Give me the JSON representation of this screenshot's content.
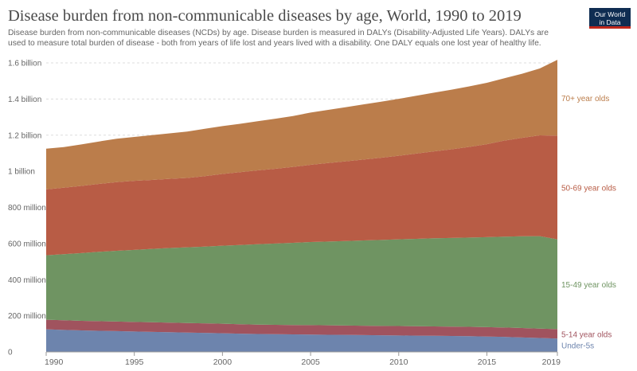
{
  "title": "Disease burden from non-communicable diseases by age, World, 1990 to 2019",
  "subtitle": "Disease burden from non-communicable diseases (NCDs) by age. Disease burden is measured in DALYs (Disability-Adjusted Life Years). DALYs are used to measure total burden of disease - both from years of life lost and years lived with a disability. One DALY equals one lost year of healthy life.",
  "logo": {
    "line1": "Our World",
    "line2": "in Data"
  },
  "colors": {
    "under5": "#6d84ad",
    "age5_14": "#a0535e",
    "age15_49": "#6f9462",
    "age50_69": "#b85c45",
    "age70": "#bb7d4b",
    "grid": "#dddddd",
    "axis": "#666666"
  },
  "chart_data": {
    "type": "area",
    "stacked": true,
    "x": [
      1990,
      1991,
      1992,
      1993,
      1994,
      1995,
      1996,
      1997,
      1998,
      1999,
      2000,
      2001,
      2002,
      2003,
      2004,
      2005,
      2006,
      2007,
      2008,
      2009,
      2010,
      2011,
      2012,
      2013,
      2014,
      2015,
      2016,
      2017,
      2018,
      2019
    ],
    "ylim": [
      0,
      1600000000
    ],
    "y_ticks": [
      {
        "value": 0,
        "label": "0"
      },
      {
        "value": 200000000,
        "label": "200 million"
      },
      {
        "value": 400000000,
        "label": "400 million"
      },
      {
        "value": 600000000,
        "label": "600 million"
      },
      {
        "value": 800000000,
        "label": "800 million"
      },
      {
        "value": 1000000000,
        "label": "1 billion"
      },
      {
        "value": 1200000000,
        "label": "1.2 billion"
      },
      {
        "value": 1400000000,
        "label": "1.4 billion"
      },
      {
        "value": 1600000000,
        "label": "1.6 billion"
      }
    ],
    "x_ticks": [
      1990,
      1995,
      2000,
      2005,
      2010,
      2015,
      2019
    ],
    "series": [
      {
        "name": "Under-5s",
        "color_key": "under5",
        "values": [
          125000000,
          122000000,
          119000000,
          117000000,
          115000000,
          113000000,
          111000000,
          109000000,
          107000000,
          105000000,
          103000000,
          101000000,
          99000000,
          98000000,
          97000000,
          96000000,
          95000000,
          94000000,
          93000000,
          92000000,
          91000000,
          90000000,
          89000000,
          88000000,
          87000000,
          85000000,
          83000000,
          80000000,
          77000000,
          74000000
        ]
      },
      {
        "name": "5-14 year olds",
        "color_key": "age5_14",
        "values": [
          53000000,
          53000000,
          53000000,
          53000000,
          53000000,
          53000000,
          53000000,
          53000000,
          53000000,
          53000000,
          53000000,
          52000000,
          52000000,
          52000000,
          52000000,
          52000000,
          52000000,
          52000000,
          52000000,
          52000000,
          52000000,
          52000000,
          52000000,
          52000000,
          52000000,
          52000000,
          52000000,
          52000000,
          52000000,
          52000000
        ]
      },
      {
        "name": "15-49 year olds",
        "color_key": "age15_49",
        "values": [
          357000000,
          366000000,
          375000000,
          384000000,
          392000000,
          399000000,
          406000000,
          413000000,
          419000000,
          425000000,
          432000000,
          439000000,
          445000000,
          450000000,
          455000000,
          460000000,
          464000000,
          468000000,
          472000000,
          476000000,
          480000000,
          484000000,
          488000000,
          491000000,
          494000000,
          498000000,
          503000000,
          508000000,
          512000000,
          497000000
        ]
      },
      {
        "name": "50-69 year olds",
        "color_key": "age50_69",
        "values": [
          365000000,
          368000000,
          372000000,
          376000000,
          380000000,
          382000000,
          382000000,
          383000000,
          384000000,
          390000000,
          397000000,
          403000000,
          409000000,
          414000000,
          420000000,
          428000000,
          435000000,
          441000000,
          448000000,
          455000000,
          463000000,
          472000000,
          481000000,
          491000000,
          502000000,
          515000000,
          532000000,
          545000000,
          558000000,
          574000000
        ]
      },
      {
        "name": "70+ year olds",
        "color_key": "age70",
        "values": [
          225000000,
          225000000,
          230000000,
          235000000,
          240000000,
          243000000,
          248000000,
          252000000,
          257000000,
          262000000,
          265000000,
          268000000,
          272000000,
          277000000,
          282000000,
          289000000,
          294000000,
          300000000,
          305000000,
          310000000,
          315000000,
          320000000,
          325000000,
          330000000,
          335000000,
          340000000,
          345000000,
          355000000,
          370000000,
          420000000
        ]
      }
    ]
  }
}
